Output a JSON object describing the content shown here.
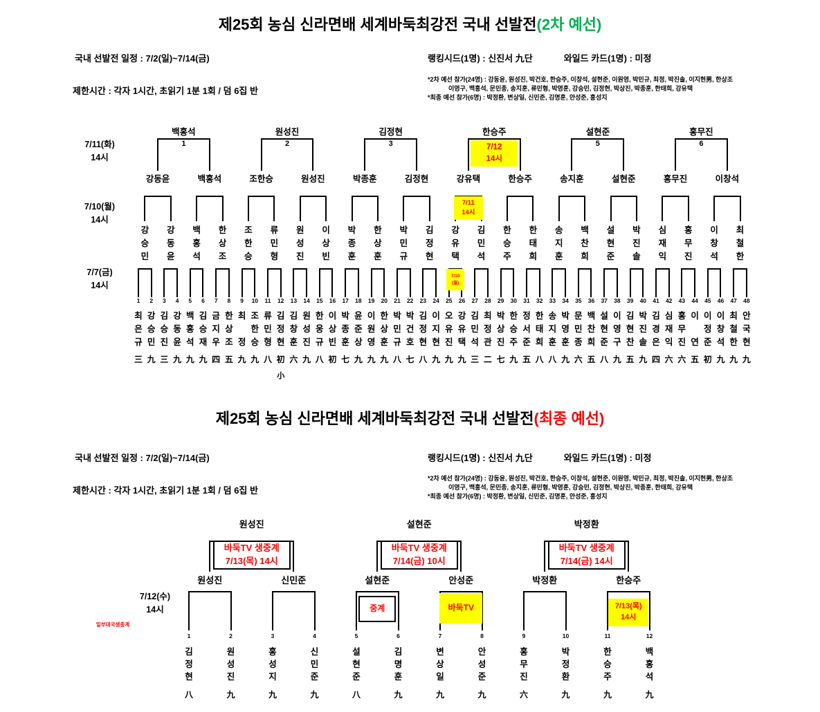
{
  "colors": {
    "accent_green": "#00B050",
    "accent_red": "#FF0000",
    "highlight_yellow": "#FFFF00",
    "line_black": "#000000"
  },
  "section1": {
    "title": "제25회 농심 신라면배 세계바둑최강전 국내 선발전",
    "title_suffix": "(2차 예선)",
    "schedule": "국내 선발전 일정 : 7/2(일)~7/14(금)",
    "time_limit": "제한시간 : 각자 1시간, 초읽기 1분 1회 / 덤 6집 반",
    "seed_info": "랭킹시드(1명) : 신진서 九단",
    "wildcard_info": "와일드 카드(1명) : 미정",
    "notes": [
      "*2차 예선 참가(24명) : 강동윤, 원성진, 박건호, 한승주, 이창석, 설현준, 이원영, 박민규, 최정, 박진솔, 이지현男, 한상조",
      "이영구, 백홍석, 문민종, 송지훈, 류민형, 박영훈, 강승민, 김정현, 박상진, 박종훈, 한태희, 강유택",
      "*최종 예선 참가(6명) : 박정환, 변상일, 신민준, 김명훈, 안성준, 홍성지"
    ],
    "round_labels": [
      {
        "date": "7/11(화)",
        "time": "14시"
      },
      {
        "date": "7/10(월)",
        "time": "14시"
      },
      {
        "date": "7/7(금)",
        "time": "14시"
      }
    ],
    "winners": [
      "백홍석",
      "원성진",
      "김정현",
      "한승주",
      "설현준",
      "홍무진"
    ],
    "bracket_numbers": [
      "1",
      "2",
      "3",
      "",
      "5",
      "6"
    ],
    "semifinalists": [
      "강동윤",
      "백홍석",
      "조한승",
      "원성진",
      "박종훈",
      "김정현",
      "강유택",
      "한승주",
      "송지훈",
      "설현준",
      "홍무진",
      "이창석"
    ],
    "round2_players": [
      "강승민",
      "강동윤",
      "백홍석",
      "한상조",
      "조한승",
      "류민형",
      "원성진",
      "이상빈",
      "박종훈",
      "한상훈",
      "박민규",
      "김정현",
      "강유택",
      "김민석",
      "한승주",
      "한태희",
      "송지훈",
      "백찬희",
      "설현준",
      "박진솔",
      "심재익",
      "홍무진",
      "이창석",
      "최철한"
    ],
    "schedule_boxes": [
      {
        "round": 3,
        "pair": 4,
        "style": "yellow",
        "lines": [
          "7/12",
          "14시"
        ]
      },
      {
        "round": 2,
        "pair": 7,
        "style": "yellow",
        "lines": [
          "7/11",
          "14시"
        ]
      },
      {
        "round": 1,
        "pair": 13,
        "style": "yellow",
        "lines": [
          "7/10",
          "(월)"
        ]
      }
    ],
    "entries": [
      {
        "no": 1,
        "name": "최은규",
        "rank": "三"
      },
      {
        "no": 2,
        "name": "강승민",
        "rank": "九"
      },
      {
        "no": 3,
        "name": "김승진",
        "rank": "三"
      },
      {
        "no": 4,
        "name": "강동윤",
        "rank": "九"
      },
      {
        "no": 5,
        "name": "백홍석",
        "rank": "九"
      },
      {
        "no": 6,
        "name": "김승재",
        "rank": "九"
      },
      {
        "no": 7,
        "name": "금지우",
        "rank": "四"
      },
      {
        "no": 8,
        "name": "한상조",
        "rank": "五"
      },
      {
        "no": 9,
        "name": "최정",
        "rank": "九"
      },
      {
        "no": 10,
        "name": "조한승",
        "rank": "九"
      },
      {
        "no": 11,
        "name": "류민형",
        "rank": "八"
      },
      {
        "no": 12,
        "name": "김정현",
        "rank": "初",
        "note": "小"
      },
      {
        "no": 13,
        "name": "김창훈",
        "rank": "六"
      },
      {
        "no": 14,
        "name": "원성진",
        "rank": "九"
      },
      {
        "no": 15,
        "name": "한웅규",
        "rank": "八"
      },
      {
        "no": 16,
        "name": "이상빈",
        "rank": "初"
      },
      {
        "no": 17,
        "name": "박종훈",
        "rank": "七"
      },
      {
        "no": 18,
        "name": "윤준상",
        "rank": "九"
      },
      {
        "no": 19,
        "name": "이원영",
        "rank": "九"
      },
      {
        "no": 20,
        "name": "한상훈",
        "rank": "九"
      },
      {
        "no": 21,
        "name": "박민규",
        "rank": "八"
      },
      {
        "no": 22,
        "name": "박건호",
        "rank": "七"
      },
      {
        "no": 23,
        "name": "김정현",
        "rank": "八"
      },
      {
        "no": 24,
        "name": "이지현",
        "rank": "九"
      },
      {
        "no": 25,
        "name": "오유진",
        "rank": "九"
      },
      {
        "no": 26,
        "name": "강유택",
        "rank": "九"
      },
      {
        "no": 27,
        "name": "김민석",
        "rank": "三"
      },
      {
        "no": 28,
        "name": "최정관",
        "rank": "二"
      },
      {
        "no": 29,
        "name": "박상진",
        "rank": "七"
      },
      {
        "no": 30,
        "name": "한승주",
        "rank": "九"
      },
      {
        "no": 31,
        "name": "정서준",
        "rank": "五"
      },
      {
        "no": 32,
        "name": "한태희",
        "rank": "八"
      },
      {
        "no": 33,
        "name": "송지훈",
        "rank": "八"
      },
      {
        "no": 34,
        "name": "박영훈",
        "rank": "九"
      },
      {
        "no": 35,
        "name": "문민종",
        "rank": "六"
      },
      {
        "no": 36,
        "name": "백찬희",
        "rank": "五"
      },
      {
        "no": 37,
        "name": "설현준",
        "rank": "八"
      },
      {
        "no": 38,
        "name": "이영구",
        "rank": "九"
      },
      {
        "no": 39,
        "name": "김현찬",
        "rank": "五"
      },
      {
        "no": 40,
        "name": "박진솔",
        "rank": "九"
      },
      {
        "no": 41,
        "name": "김경은",
        "rank": "四"
      },
      {
        "no": 42,
        "name": "심재익",
        "rank": "六"
      },
      {
        "no": 43,
        "name": "홍무진",
        "rank": "六"
      },
      {
        "no": 44,
        "name": "이연",
        "rank": "五"
      },
      {
        "no": 45,
        "name": "이정준",
        "rank": "初"
      },
      {
        "no": 46,
        "name": "이창석",
        "rank": "九"
      },
      {
        "no": 47,
        "name": "최철한",
        "rank": "九"
      },
      {
        "no": 48,
        "name": "안국현",
        "rank": "九"
      }
    ]
  },
  "section2": {
    "title": "제25회 농심 신라면배 세계바둑최강전 국내 선발전",
    "title_suffix": "(최종 예선)",
    "schedule": "국내 선발전 일정 : 7/2(일)~7/14(금)",
    "time_limit": "제한시간 : 각자 1시간, 초읽기 1분 1회 / 덤 6집 반",
    "seed_info": "랭킹시드(1명) : 신진서 九단",
    "wildcard_info": "와일드 카드(1명) : 미정",
    "notes": [
      "*2차 예선 참가(24명) : 강동윤, 원성진, 박건호, 한승주, 이창석, 설현준, 이원영, 박민규, 최정, 박진솔, 이지현男, 한상조",
      "이영구, 백홍석, 문민종, 송지훈, 류민형, 박영훈, 강승민, 김정현, 박상진, 박종훈, 한태희, 강유택",
      "*최종 예선 참가(6명) : 박정환, 변상일, 신민준, 김명훈, 안성준, 홍성지"
    ],
    "round_label": {
      "date": "7/12(수)",
      "time": "14시",
      "note": "일부대국생중계"
    },
    "winners": [
      "원성진",
      "설현준",
      "박정환"
    ],
    "broadcast_boxes": [
      {
        "lines": [
          "바둑TV 생중계",
          "7/13(목) 14시"
        ]
      },
      {
        "lines": [
          "바둑TV 생중계",
          "7/14(금) 10시"
        ]
      },
      {
        "lines": [
          "바둑TV 생중계",
          "7/14(금) 14시"
        ]
      }
    ],
    "semifinalists": [
      "원성진",
      "신민준",
      "설현준",
      "안성준",
      "박정환",
      "한승주"
    ],
    "semi_boxes": [
      {
        "pair": 3,
        "style": "bordered",
        "lines": [
          "중계"
        ]
      },
      {
        "pair": 4,
        "style": "yellow",
        "lines": [
          "바둑TV"
        ]
      },
      {
        "pair": 6,
        "style": "yellow",
        "lines": [
          "7/13(목)",
          "14시"
        ]
      }
    ],
    "entries": [
      {
        "no": 1,
        "name": "김정현",
        "rank": "八"
      },
      {
        "no": 2,
        "name": "원성진",
        "rank": "九"
      },
      {
        "no": 3,
        "name": "홍성지",
        "rank": "九"
      },
      {
        "no": 4,
        "name": "신민준",
        "rank": "九"
      },
      {
        "no": 5,
        "name": "설현준",
        "rank": "八"
      },
      {
        "no": 6,
        "name": "김명훈",
        "rank": "九"
      },
      {
        "no": 7,
        "name": "변상일",
        "rank": "九"
      },
      {
        "no": 8,
        "name": "안성준",
        "rank": "九"
      },
      {
        "no": 9,
        "name": "홍무진",
        "rank": "六"
      },
      {
        "no": 10,
        "name": "박정환",
        "rank": "九"
      },
      {
        "no": 11,
        "name": "한승주",
        "rank": "九"
      },
      {
        "no": 12,
        "name": "백홍석",
        "rank": "九"
      }
    ]
  }
}
